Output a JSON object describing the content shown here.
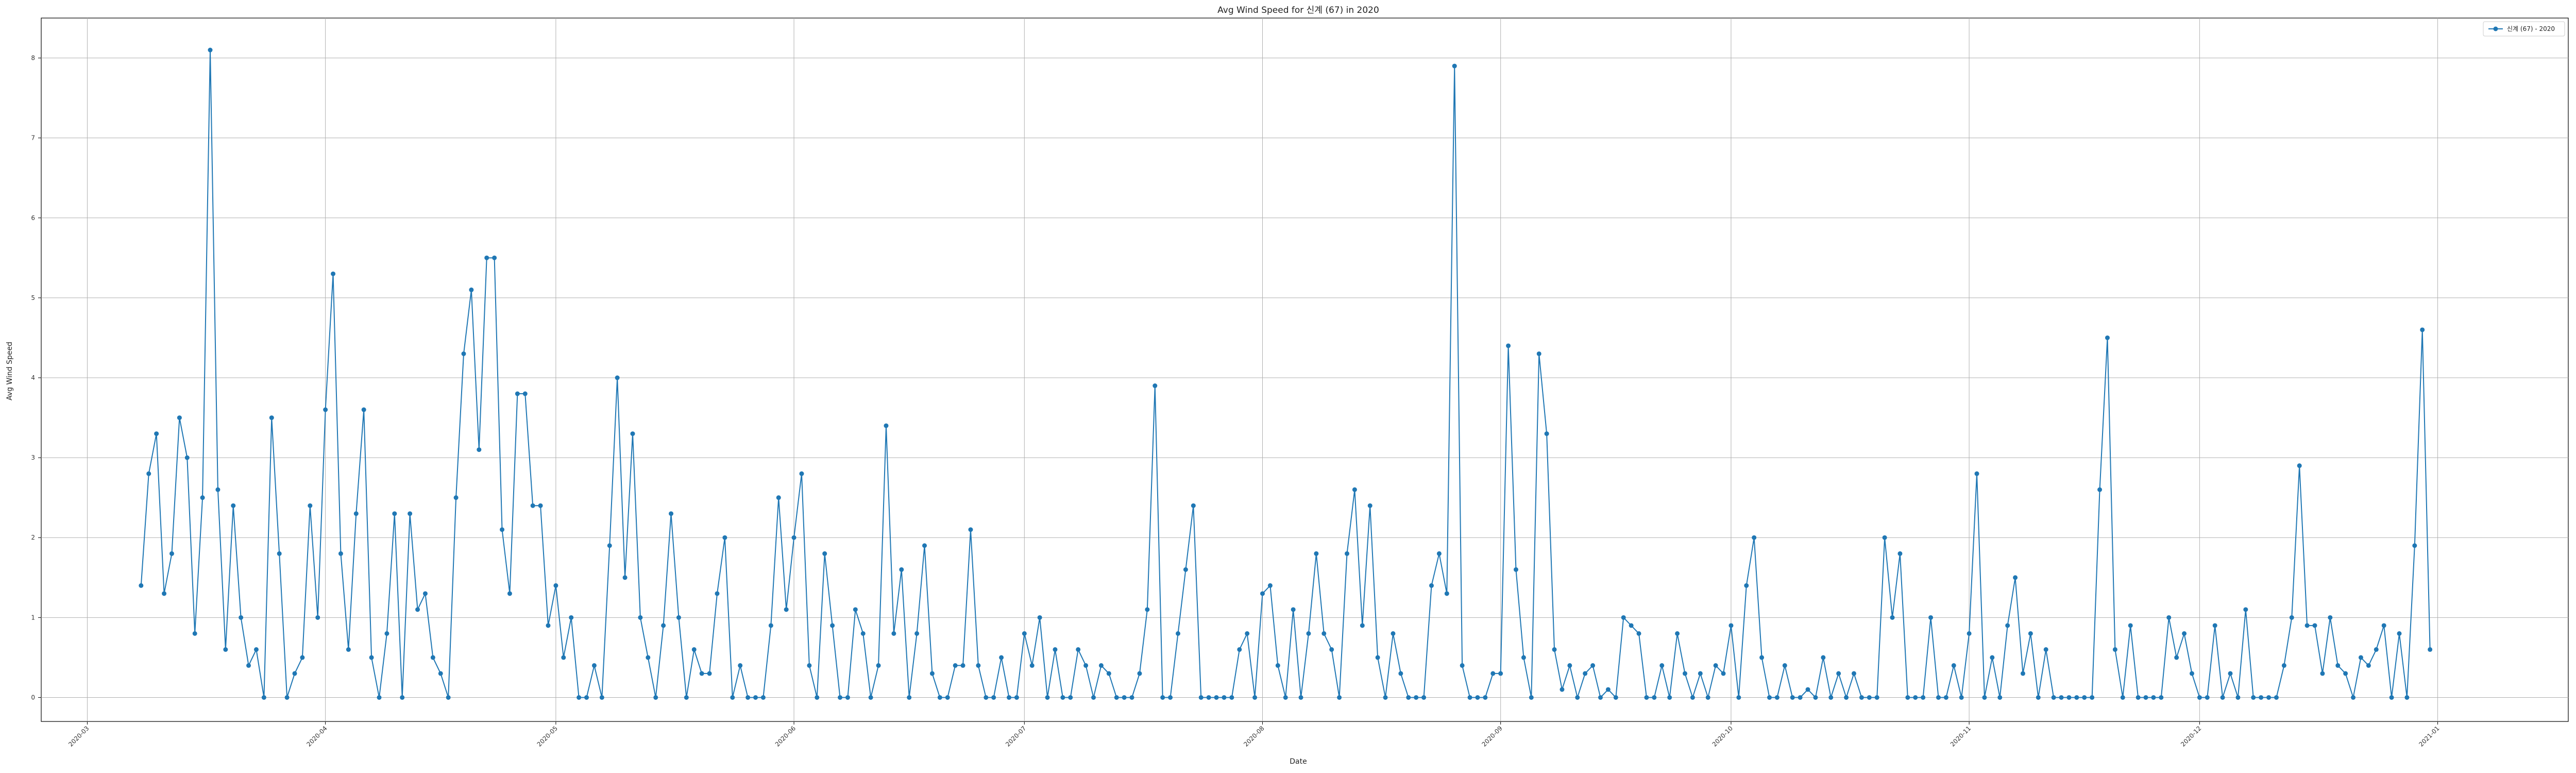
{
  "chart_data": {
    "type": "line",
    "title": "Avg Wind Speed for 신계 (67) in 2020",
    "xlabel": "Date",
    "ylabel": "Avg Wind Speed",
    "xlim": [
      "2020-02-24",
      "2021-01-18"
    ],
    "ylim": [
      -0.3,
      8.5
    ],
    "grid": true,
    "legend_position": "top-right",
    "x_tick_labels": [
      "2020-03",
      "2020-04",
      "2020-05",
      "2020-06",
      "2020-07",
      "2020-08",
      "2020-09",
      "2020-10",
      "2020-11",
      "2020-12",
      "2021-01"
    ],
    "y_ticks": [
      0,
      1,
      2,
      3,
      4,
      5,
      6,
      7,
      8
    ],
    "series": [
      {
        "name": "신계 (67) - 2020",
        "color": "#1f77b4",
        "marker": "circle",
        "start_date": "2020-03-08",
        "values": [
          1.4,
          2.8,
          3.3,
          1.3,
          1.8,
          3.5,
          3.0,
          0.8,
          2.5,
          8.1,
          2.6,
          0.6,
          2.4,
          1.0,
          0.4,
          0.6,
          0.0,
          3.5,
          1.8,
          0.0,
          0.3,
          0.5,
          2.4,
          1.0,
          3.6,
          5.3,
          1.8,
          0.6,
          2.3,
          3.6,
          0.5,
          0.0,
          0.8,
          2.3,
          0.0,
          2.3,
          1.1,
          1.3,
          0.5,
          0.3,
          0.0,
          2.5,
          4.3,
          5.1,
          3.1,
          5.5,
          5.5,
          2.1,
          1.3,
          3.8,
          3.8,
          2.4,
          2.4,
          0.9,
          1.4,
          0.5,
          1.0,
          0.0,
          0.0,
          0.4,
          0.0,
          1.9,
          4.0,
          1.5,
          3.3,
          1.0,
          0.5,
          0.0,
          0.9,
          2.3,
          1.0,
          0.0,
          0.6,
          0.3,
          0.3,
          1.3,
          2.0,
          0.0,
          0.4,
          0.0,
          0.0,
          0.0,
          0.9,
          2.5,
          1.1,
          2.0,
          2.8,
          0.4,
          0.0,
          1.8,
          0.9,
          0.0,
          0.0,
          1.1,
          0.8,
          0.0,
          0.4,
          3.4,
          0.8,
          1.6,
          0.0,
          0.8,
          1.9,
          0.3,
          0.0,
          0.0,
          0.4,
          0.4,
          2.1,
          0.4,
          0.0,
          0.0,
          0.5,
          0.0,
          0.0,
          0.8,
          0.4,
          1.0,
          0.0,
          0.6,
          0.0,
          0.0,
          0.6,
          0.4,
          0.0,
          0.4,
          0.3,
          0.0,
          0.0,
          0.0,
          0.3,
          1.1,
          3.9,
          0.0,
          0.0,
          0.8,
          1.6,
          2.4,
          0.0,
          0.0,
          0.0,
          0.0,
          0.0,
          0.6,
          0.8,
          0.0,
          1.3,
          1.4,
          0.4,
          0.0,
          1.1,
          0.0,
          0.8,
          1.8,
          0.8,
          0.6,
          0.0,
          1.8,
          2.6,
          0.9,
          2.4,
          0.5,
          0.0,
          0.8,
          0.3,
          0.0,
          0.0,
          0.0,
          1.4,
          1.8,
          1.3,
          7.9,
          0.4,
          0.0,
          0.0,
          0.0,
          0.3,
          0.3,
          4.4,
          1.6,
          0.5,
          0.0,
          4.3,
          3.3,
          0.6,
          0.1,
          0.4,
          0.0,
          0.3,
          0.4,
          0.0,
          0.1,
          0.0,
          1.0,
          0.9,
          0.8,
          0.0,
          0.0,
          0.4,
          0.0,
          0.8,
          0.3,
          0.0,
          0.3,
          0.0,
          0.4,
          0.3,
          0.9,
          0.0,
          1.4,
          2.0,
          0.5,
          0.0,
          0.0,
          0.4,
          0.0,
          0.0,
          0.1,
          0.0,
          0.5,
          0.0,
          0.3,
          0.0,
          0.3,
          0.0,
          0.0,
          0.0,
          2.0,
          1.0,
          1.8,
          0.0,
          0.0,
          0.0,
          1.0,
          0.0,
          0.0,
          0.4,
          0.0,
          0.8,
          2.8,
          0.0,
          0.5,
          0.0,
          0.9,
          1.5,
          0.3,
          0.8,
          0.0,
          0.6,
          0.0,
          0.0,
          0.0,
          0.0,
          0.0,
          0.0,
          2.6,
          4.5,
          0.6,
          0.0,
          0.9,
          0.0,
          0.0,
          0.0,
          0.0,
          1.0,
          0.5,
          0.8,
          0.3,
          0.0,
          0.0,
          0.9,
          0.0,
          0.3,
          0.0,
          1.1,
          0.0,
          0.0,
          0.0,
          0.0,
          0.4,
          1.0,
          2.9,
          0.9,
          0.9,
          0.3,
          1.0,
          0.4,
          0.3,
          0.0,
          0.5,
          0.4,
          0.6,
          0.9,
          0.0,
          0.8,
          0.0,
          1.9,
          4.6,
          0.6
        ]
      }
    ]
  }
}
